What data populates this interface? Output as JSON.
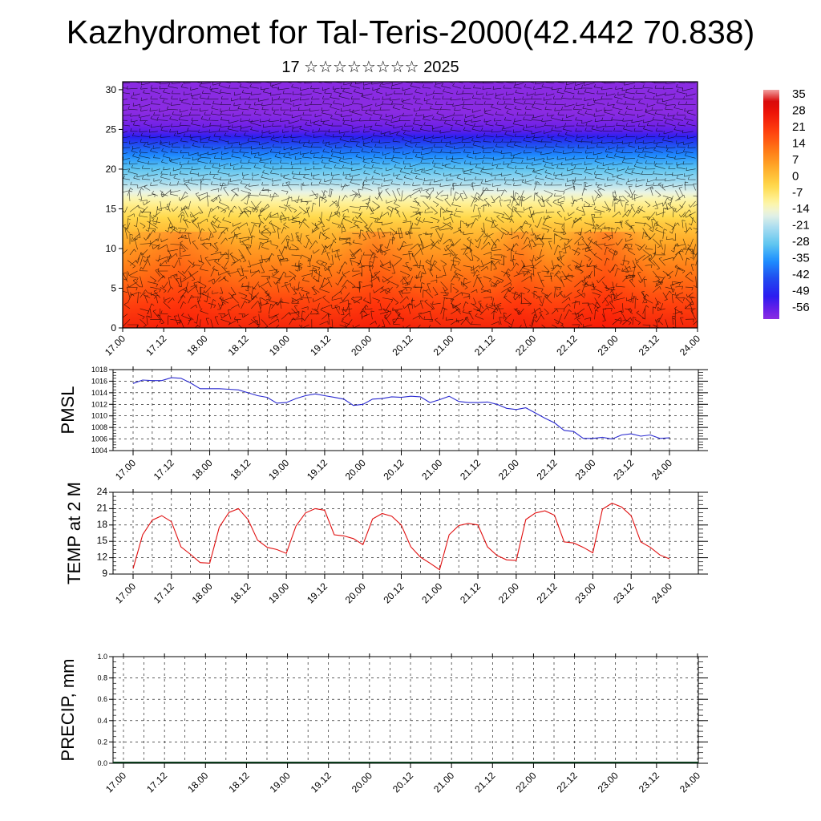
{
  "title": "Kazhydromet for Tal-Teris-2000(42.442 70.838)",
  "subtitle": "17 ☆☆☆☆☆☆☆☆ 2025",
  "chart_data": [
    {
      "type": "heatmap",
      "name": "temperature-wind-cross-section",
      "y_ticks": [
        "0",
        "5",
        "10",
        "15",
        "20",
        "25",
        "30"
      ],
      "ylim": [
        0,
        31
      ],
      "x_ticks": [
        "17.00",
        "17.12",
        "18.00",
        "18.12",
        "19.00",
        "19.12",
        "20.00",
        "20.12",
        "21.00",
        "21.12",
        "22.00",
        "22.12",
        "23.00",
        "23.12",
        "24.00"
      ],
      "colorbar_labels": [
        "35",
        "28",
        "21",
        "14",
        "7",
        "0",
        "-7",
        "-14",
        "-21",
        "-28",
        "-35",
        "-42",
        "-49",
        "-56"
      ],
      "colorbar_range": [
        -60,
        38
      ],
      "profile_level_temp_C": [
        [
          0,
          25
        ],
        [
          3,
          20
        ],
        [
          6,
          14
        ],
        [
          10,
          7
        ],
        [
          13,
          0
        ],
        [
          16,
          -10
        ],
        [
          18.5,
          -22
        ],
        [
          21,
          -32
        ],
        [
          23,
          -42
        ],
        [
          25,
          -56
        ],
        [
          27,
          -60
        ],
        [
          31,
          -60
        ]
      ]
    },
    {
      "type": "line",
      "ylabel": "PMSL",
      "ylim": [
        1004,
        1018
      ],
      "y_ticks": [
        "1004",
        "1006",
        "1008",
        "1010",
        "1012",
        "1014",
        "1016",
        "1018"
      ],
      "x_ticks": [
        "17.00",
        "17.12",
        "18.00",
        "18.12",
        "19.00",
        "19.12",
        "20.00",
        "20.12",
        "21.00",
        "21.12",
        "22.00",
        "22.12",
        "23.00",
        "23.12",
        "24.00"
      ],
      "x": [
        0,
        3,
        6,
        9,
        12,
        15,
        18,
        21,
        24,
        27,
        30,
        33,
        36,
        39,
        42,
        45,
        48,
        51,
        54,
        57,
        60,
        63,
        66,
        69,
        72,
        75,
        78,
        81,
        84,
        87,
        90,
        93,
        96,
        99,
        102,
        105,
        108,
        111,
        114,
        117,
        120,
        123,
        126,
        129,
        132,
        135,
        138,
        141,
        144,
        147,
        150,
        153,
        156,
        159,
        162,
        165,
        168
      ],
      "values": [
        1015.6,
        1016.2,
        1016.1,
        1016.1,
        1016.6,
        1016.5,
        1015.7,
        1014.7,
        1014.7,
        1014.7,
        1014.6,
        1014.5,
        1014.0,
        1013.5,
        1013.2,
        1012.2,
        1012.3,
        1013.0,
        1013.5,
        1013.8,
        1013.5,
        1013.2,
        1012.9,
        1011.8,
        1012.0,
        1012.9,
        1013.0,
        1013.3,
        1013.2,
        1013.4,
        1013.3,
        1012.3,
        1012.8,
        1013.4,
        1012.5,
        1012.3,
        1012.3,
        1012.4,
        1012.0,
        1011.3,
        1011.1,
        1011.4,
        1010.5,
        1009.6,
        1008.8,
        1007.5,
        1007.3,
        1006.1,
        1006.1,
        1006.3,
        1006.0,
        1006.7,
        1006.9,
        1006.5,
        1006.7,
        1006.1,
        1006.2
      ],
      "color": "#2a2ad0"
    },
    {
      "type": "line",
      "ylabel": "TEMP at 2 M",
      "ylim": [
        9,
        24
      ],
      "y_ticks": [
        "9",
        "12",
        "15",
        "18",
        "21",
        "24"
      ],
      "x_ticks": [
        "17.00",
        "17.12",
        "18.00",
        "18.12",
        "19.00",
        "19.12",
        "20.00",
        "20.12",
        "21.00",
        "21.12",
        "22.00",
        "22.12",
        "23.00",
        "23.12",
        "24.00"
      ],
      "x": [
        0,
        3,
        6,
        9,
        12,
        15,
        18,
        21,
        24,
        27,
        30,
        33,
        36,
        39,
        42,
        45,
        48,
        51,
        54,
        57,
        60,
        63,
        66,
        69,
        72,
        75,
        78,
        81,
        84,
        87,
        90,
        93,
        96,
        99,
        102,
        105,
        108,
        111,
        114,
        117,
        120,
        123,
        126,
        129,
        132,
        135,
        138,
        141,
        144,
        147,
        150,
        153,
        156,
        159,
        162,
        165,
        168
      ],
      "values": [
        10.0,
        16.2,
        18.9,
        19.7,
        18.6,
        14.0,
        12.6,
        11.1,
        11.0,
        17.6,
        20.3,
        21.0,
        19.0,
        15.2,
        13.9,
        13.5,
        12.8,
        17.8,
        20.2,
        21.0,
        20.7,
        16.2,
        16.0,
        15.5,
        14.4,
        19.1,
        20.1,
        19.6,
        18.0,
        14.0,
        12.1,
        11.0,
        9.8,
        16.2,
        17.9,
        18.3,
        18.0,
        14.0,
        12.4,
        11.6,
        11.5,
        19.0,
        20.2,
        20.6,
        19.8,
        14.9,
        14.7,
        13.9,
        12.9,
        20.9,
        22.0,
        21.3,
        19.7,
        14.9,
        13.9,
        12.5,
        11.8
      ],
      "color": "#e01010"
    },
    {
      "type": "line",
      "ylabel": "PRECIP, mm",
      "ylim": [
        0,
        1.0
      ],
      "y_ticks": [
        "0.0",
        "0.2",
        "0.4",
        "0.6",
        "0.8",
        "1.0"
      ],
      "x_ticks": [
        "17.00",
        "17.12",
        "18.00",
        "18.12",
        "19.00",
        "19.12",
        "20.00",
        "20.12",
        "21.00",
        "21.12",
        "22.00",
        "22.12",
        "23.00",
        "23.12",
        "24.00"
      ],
      "values": [],
      "color": "#000000"
    }
  ]
}
